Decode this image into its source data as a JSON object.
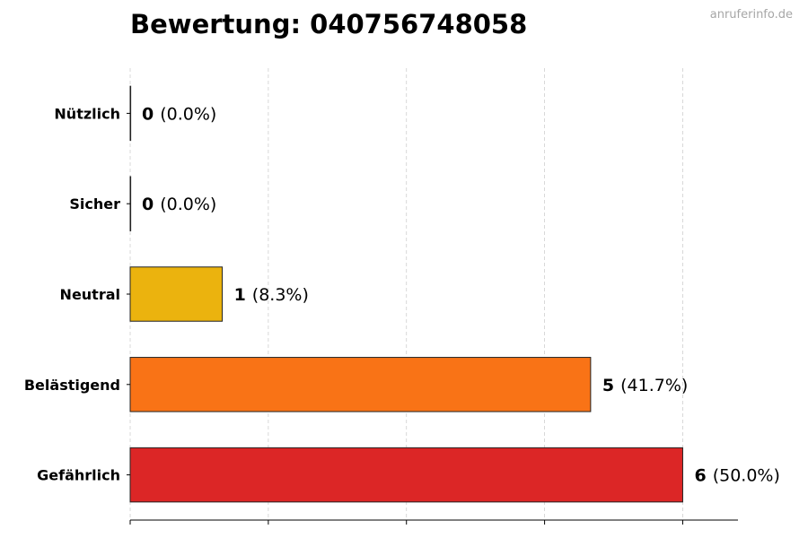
{
  "title": "Bewertung: 040756748058",
  "watermark": "anruferinfo.de",
  "chart_data": {
    "type": "bar",
    "orientation": "horizontal",
    "title": "Bewertung: 040756748058",
    "xlabel": "",
    "ylabel": "",
    "categories": [
      "Nützlich",
      "Sicher",
      "Neutral",
      "Belästigend",
      "Gefährlich"
    ],
    "values": [
      0,
      0,
      1,
      5,
      6
    ],
    "percent_labels": [
      "(0.0%)",
      "(0.0%)",
      "(8.3%)",
      "(41.7%)",
      "(50.0%)"
    ],
    "colors": [
      "#2ca02c",
      "#1f77b4",
      "#ebb30e",
      "#f97316",
      "#dc2626"
    ],
    "xlim": [
      0,
      6.6
    ],
    "x_tick_values": [
      0,
      1.5,
      3,
      4.5,
      6
    ],
    "x_tick_labels_shown": false,
    "grid": "vertical dashed",
    "legend": "none"
  }
}
